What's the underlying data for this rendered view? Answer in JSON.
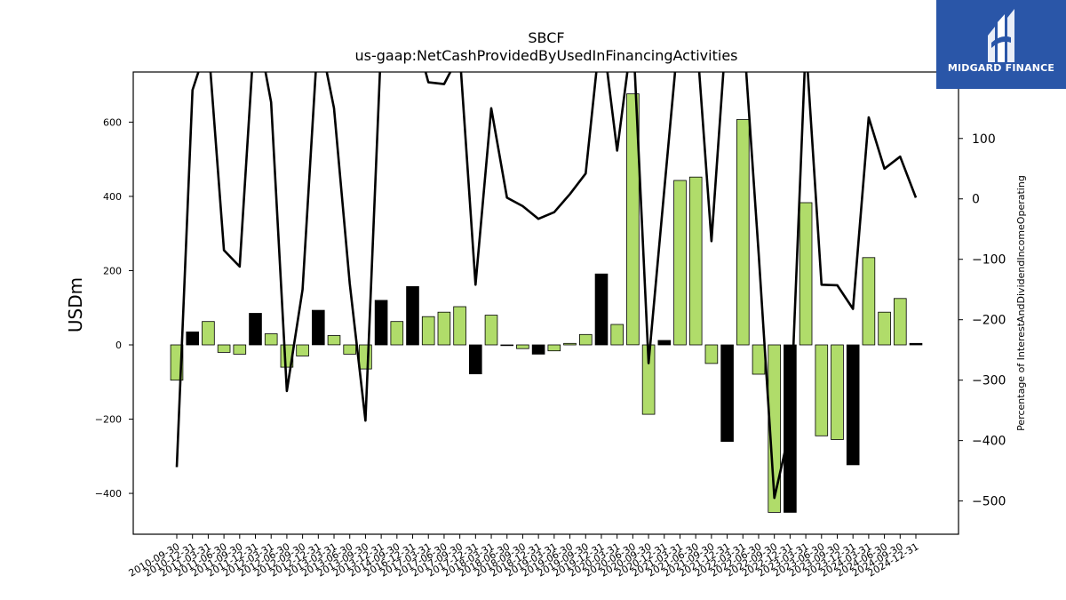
{
  "brand": {
    "name": "MIDGARD FINANCE",
    "color": "#2a56a8"
  },
  "chart_data": {
    "type": "bar+line",
    "title": "SBCF",
    "subtitle": "us-gaap:NetCashProvidedByUsedInFinancingActivities",
    "ylabel": "USDm",
    "y2label": "Percentage of InterestAndDividendIncomeOperating",
    "ylim": [
      -510,
      735
    ],
    "y2lim": [
      -555,
      210
    ],
    "yticks": [
      -400,
      -200,
      0,
      200,
      400,
      600
    ],
    "y2ticks": [
      -500,
      -400,
      -300,
      -200,
      -100,
      0,
      100
    ],
    "colors": {
      "positive_bar": "#b0dc6a",
      "highlight_bar": "#000000",
      "line": "#000000"
    },
    "categories": [
      "2010-09-30",
      "2010-12-31",
      "2011-03-31",
      "2011-06-30",
      "2011-09-30",
      "2011-12-31",
      "2012-03-31",
      "2012-06-30",
      "2012-09-30",
      "2012-12-31",
      "2013-03-31",
      "2013-06-30",
      "2013-09-30",
      "2013-12-31",
      "2014-09-30",
      "2016-12-31",
      "2017-03-31",
      "2017-06-30",
      "2017-09-30",
      "2017-12-31",
      "2018-03-31",
      "2018-06-30",
      "2018-09-30",
      "2018-12-31",
      "2019-03-31",
      "2019-06-30",
      "2019-09-30",
      "2019-12-31",
      "2020-03-31",
      "2020-06-30",
      "2020-09-30",
      "2020-12-31",
      "2021-03-31",
      "2021-06-30",
      "2021-09-30",
      "2021-12-31",
      "2022-03-31",
      "2022-06-30",
      "2022-09-30",
      "2022-12-31",
      "2023-03-31",
      "2023-06-30",
      "2023-09-30",
      "2023-12-31",
      "2024-03-31",
      "2024-06-30",
      "2024-09-30",
      "2024-12-31"
    ],
    "bars": [
      {
        "value": -95,
        "color": "green"
      },
      {
        "value": 35,
        "color": "black"
      },
      {
        "value": 63,
        "color": "green"
      },
      {
        "value": -20,
        "color": "green"
      },
      {
        "value": -25,
        "color": "green"
      },
      {
        "value": 85,
        "color": "black"
      },
      {
        "value": 30,
        "color": "green"
      },
      {
        "value": -60,
        "color": "green"
      },
      {
        "value": -30,
        "color": "green"
      },
      {
        "value": 93,
        "color": "black"
      },
      {
        "value": 25,
        "color": "green"
      },
      {
        "value": -25,
        "color": "green"
      },
      {
        "value": -65,
        "color": "green"
      },
      {
        "value": 120,
        "color": "black"
      },
      {
        "value": 63,
        "color": "green"
      },
      {
        "value": 157,
        "color": "black"
      },
      {
        "value": 76,
        "color": "green"
      },
      {
        "value": 88,
        "color": "green"
      },
      {
        "value": 103,
        "color": "green"
      },
      {
        "value": -78,
        "color": "black"
      },
      {
        "value": 80,
        "color": "green"
      },
      {
        "value": -2,
        "color": "green"
      },
      {
        "value": -10,
        "color": "green"
      },
      {
        "value": -25,
        "color": "black"
      },
      {
        "value": -16,
        "color": "green"
      },
      {
        "value": 4,
        "color": "green"
      },
      {
        "value": 28,
        "color": "green"
      },
      {
        "value": 191,
        "color": "black"
      },
      {
        "value": 55,
        "color": "green"
      },
      {
        "value": 676,
        "color": "green"
      },
      {
        "value": -187,
        "color": "green"
      },
      {
        "value": 12,
        "color": "black"
      },
      {
        "value": 443,
        "color": "green"
      },
      {
        "value": 452,
        "color": "green"
      },
      {
        "value": -50,
        "color": "green"
      },
      {
        "value": -260,
        "color": "black"
      },
      {
        "value": 607,
        "color": "green"
      },
      {
        "value": -79,
        "color": "green"
      },
      {
        "value": -451,
        "color": "green"
      },
      {
        "value": -451,
        "color": "black"
      },
      {
        "value": 383,
        "color": "green"
      },
      {
        "value": -245,
        "color": "green"
      },
      {
        "value": -255,
        "color": "green"
      },
      {
        "value": -323,
        "color": "black"
      },
      {
        "value": 235,
        "color": "green"
      },
      {
        "value": 88,
        "color": "green"
      },
      {
        "value": 125,
        "color": "green"
      },
      {
        "value": 4,
        "color": "black"
      }
    ],
    "line_values": [
      -444,
      180,
      260,
      -85,
      -112,
      300,
      160,
      -318,
      -150,
      280,
      150,
      -140,
      -367,
      260,
      300,
      290,
      193,
      190,
      240,
      -142,
      150,
      2,
      -12,
      -33,
      -22,
      8,
      42,
      290,
      80,
      280,
      -272,
      15,
      300,
      290,
      -70,
      300,
      290,
      -90,
      -495,
      -380,
      260,
      -142,
      -143,
      -182,
      135,
      50,
      70,
      2
    ]
  }
}
